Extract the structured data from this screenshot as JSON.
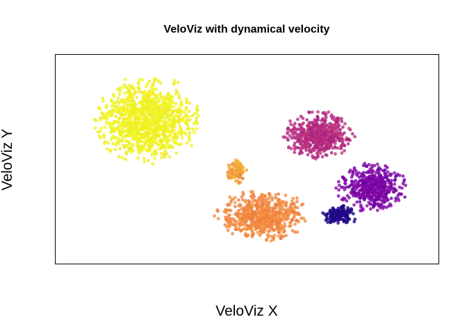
{
  "chart_data": {
    "type": "scatter",
    "title": "VeloViz with dynamical velocity",
    "xlabel": "VeloViz X",
    "ylabel": "VeloViz Y",
    "axes_shown": false,
    "grid": false,
    "legend": "none",
    "xlim": [
      0,
      100
    ],
    "ylim": [
      0,
      100
    ],
    "point_opacity": 0.8,
    "palette": [
      "#0D0887",
      "#6A00A8",
      "#B12A90",
      "#E16462",
      "#F48849",
      "#FCE724",
      "#F0F921"
    ],
    "clusters": [
      {
        "center": [
          22,
          70
        ],
        "spread": [
          15,
          22
        ],
        "count": 1100,
        "colors": [
          "#F2F71F",
          "#EEF520",
          "#F7E825",
          "#E9F227"
        ]
      },
      {
        "center": [
          54,
          22
        ],
        "spread": [
          13,
          13
        ],
        "count": 620,
        "colors": [
          "#F38A42",
          "#EF7E3F",
          "#F4923F"
        ]
      },
      {
        "center": [
          47,
          44
        ],
        "spread": [
          3,
          6
        ],
        "count": 110,
        "colors": [
          "#F4A13B",
          "#F1B635",
          "#F08640"
        ]
      },
      {
        "center": [
          70,
          62
        ],
        "spread": [
          10,
          12
        ],
        "count": 560,
        "colors": [
          "#B52A85",
          "#A8227F",
          "#C1357A"
        ]
      },
      {
        "center": [
          85,
          36
        ],
        "spread": [
          10,
          12
        ],
        "count": 520,
        "colors": [
          "#7E06A3",
          "#8A0AA6",
          "#6A00A8"
        ]
      },
      {
        "center": [
          76,
          22
        ],
        "spread": [
          5,
          5
        ],
        "count": 150,
        "colors": [
          "#1E0A80",
          "#2C0594",
          "#140C7D"
        ]
      }
    ]
  }
}
